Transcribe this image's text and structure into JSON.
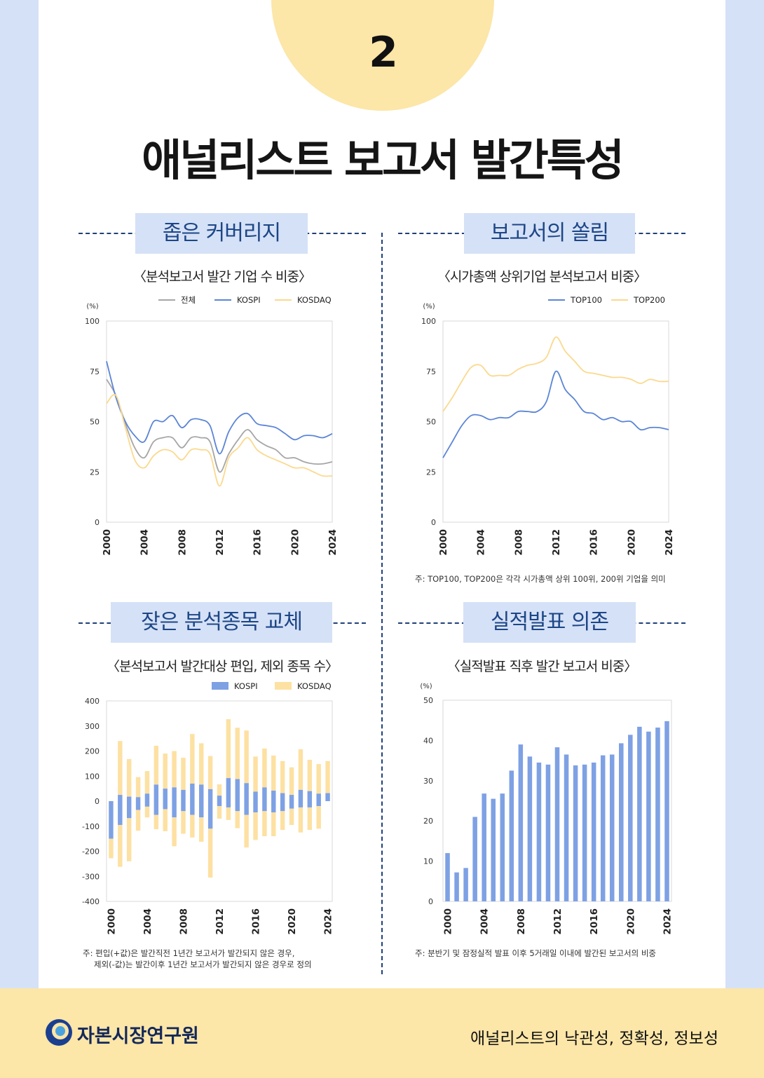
{
  "header": {
    "number": "2",
    "title": "애널리스트 보고서 발간특성"
  },
  "sections": {
    "coverage": {
      "heading": "좁은 커버리지",
      "subtitle": "〈분석보고서 발간 기업 수 비중〉"
    },
    "concentration": {
      "heading": "보고서의 쏠림",
      "subtitle": "〈시가총액 상위기업 분석보고서 비중〉",
      "note": "주: TOP100, TOP200은 각각 시가총액 상위 100위, 200위 기업을 의미"
    },
    "turnover": {
      "heading": "잦은 분석종목 교체",
      "subtitle": "〈분석보고서 발간대상 편입, 제외 종목 수〉",
      "note_line1": "주: 편입(+값)은 발간직전 1년간 보고서가 발간되지 않은 경우,",
      "note_line2": "제외(-값)는 발간이후 1년간 보고서가 발간되지 않은 경우로 정의"
    },
    "earnings": {
      "heading": "실적발표 의존",
      "subtitle": "〈실적발표 직후 발간 보고서 비중〉",
      "note": "주: 분반기 및 잠정실적 발표 이후 5거래일 이내에 발간된 보고서의 비중"
    }
  },
  "footer": {
    "org": "자본시장연구원",
    "book_title": "애널리스트의 낙관성, 정확성, 정보성"
  },
  "colors": {
    "gray": "#a6a6a6",
    "blue": "#5b85d6",
    "yellow": "#fbd98e",
    "bar_blue": "#7ea1e4",
    "bar_yellow": "#fde1a2"
  },
  "chart_data": [
    {
      "id": "coverage",
      "type": "line",
      "unit": "(%)",
      "x": [
        2000,
        2001,
        2002,
        2003,
        2004,
        2005,
        2006,
        2007,
        2008,
        2009,
        2010,
        2011,
        2012,
        2013,
        2014,
        2015,
        2016,
        2017,
        2018,
        2019,
        2020,
        2021,
        2022,
        2023,
        2024
      ],
      "xticks": [
        "2000",
        "2004",
        "2008",
        "2012",
        "2016",
        "2020",
        "2024"
      ],
      "ylim": [
        0,
        100
      ],
      "yticks": [
        0,
        25,
        50,
        75,
        100
      ],
      "series": [
        {
          "name": "전체",
          "color": "#a6a6a6",
          "values": [
            71,
            63,
            49,
            37,
            32,
            40,
            42,
            42,
            37,
            42,
            42,
            40,
            25,
            34,
            41,
            46,
            41,
            38,
            36,
            32,
            32,
            30,
            29,
            29,
            30
          ]
        },
        {
          "name": "KOSPI",
          "color": "#5b85d6",
          "values": [
            80,
            62,
            50,
            43,
            40,
            50,
            50,
            53,
            47,
            51,
            51,
            48,
            34,
            45,
            52,
            54,
            49,
            48,
            47,
            44,
            41,
            43,
            43,
            42,
            44
          ]
        },
        {
          "name": "KOSDAQ",
          "color": "#fbd98e",
          "values": [
            59,
            63,
            47,
            31,
            27,
            33,
            36,
            35,
            31,
            36,
            36,
            34,
            18,
            32,
            37,
            42,
            36,
            33,
            31,
            29,
            27,
            27,
            25,
            23,
            23
          ]
        }
      ]
    },
    {
      "id": "concentration",
      "type": "line",
      "unit": "(%)",
      "x": [
        2000,
        2001,
        2002,
        2003,
        2004,
        2005,
        2006,
        2007,
        2008,
        2009,
        2010,
        2011,
        2012,
        2013,
        2014,
        2015,
        2016,
        2017,
        2018,
        2019,
        2020,
        2021,
        2022,
        2023,
        2024
      ],
      "xticks": [
        "2000",
        "2004",
        "2008",
        "2012",
        "2016",
        "2020",
        "2024"
      ],
      "ylim": [
        0,
        100
      ],
      "yticks": [
        0,
        25,
        50,
        75,
        100
      ],
      "series": [
        {
          "name": "TOP100",
          "color": "#5b85d6",
          "values": [
            32,
            40,
            48,
            53,
            53,
            51,
            52,
            52,
            55,
            55,
            55,
            60,
            75,
            66,
            61,
            55,
            54,
            51,
            52,
            50,
            50,
            46,
            47,
            47,
            46
          ]
        },
        {
          "name": "TOP200",
          "color": "#fbd98e",
          "values": [
            55,
            62,
            70,
            77,
            78,
            73,
            73,
            73,
            76,
            78,
            79,
            82,
            92,
            85,
            80,
            75,
            74,
            73,
            72,
            72,
            71,
            69,
            71,
            70,
            70
          ]
        }
      ]
    },
    {
      "id": "turnover",
      "type": "bar",
      "x": [
        2000,
        2001,
        2002,
        2003,
        2004,
        2005,
        2006,
        2007,
        2008,
        2009,
        2010,
        2011,
        2012,
        2013,
        2014,
        2015,
        2016,
        2017,
        2018,
        2019,
        2020,
        2021,
        2022,
        2023,
        2024
      ],
      "xticks": [
        "2000",
        "2004",
        "2008",
        "2012",
        "2016",
        "2020",
        "2024"
      ],
      "ylim": [
        -400,
        400
      ],
      "yticks": [
        400,
        300,
        200,
        100,
        0,
        -100,
        -200,
        -300,
        -400
      ],
      "series": [
        {
          "name": "KOSPI",
          "color": "#7ea1e4",
          "pos": [
            0,
            25,
            18,
            16,
            30,
            66,
            50,
            55,
            45,
            70,
            66,
            48,
            22,
            92,
            88,
            72,
            38,
            55,
            42,
            32,
            25,
            45,
            40,
            30,
            32
          ],
          "neg": [
            -150,
            -95,
            -68,
            -35,
            -22,
            -55,
            -32,
            -65,
            -40,
            -55,
            -65,
            -110,
            -20,
            -25,
            -40,
            -55,
            -45,
            -40,
            -45,
            -40,
            -30,
            -25,
            -25,
            -20,
            0
          ]
        },
        {
          "name": "KOSDAQ",
          "color": "#fde1a2",
          "pos": [
            0,
            215,
            150,
            80,
            90,
            155,
            140,
            145,
            128,
            198,
            165,
            132,
            45,
            235,
            205,
            210,
            140,
            155,
            140,
            128,
            110,
            162,
            125,
            118,
            128
          ],
          "neg": [
            -228,
            -262,
            -240,
            -118,
            -65,
            -112,
            -120,
            -180,
            -130,
            -145,
            -162,
            -305,
            -70,
            -75,
            -108,
            -185,
            -155,
            -140,
            -140,
            -115,
            -95,
            -125,
            -115,
            -110,
            0
          ]
        }
      ]
    },
    {
      "id": "earnings",
      "type": "bar",
      "unit": "(%)",
      "x": [
        2000,
        2001,
        2002,
        2003,
        2004,
        2005,
        2006,
        2007,
        2008,
        2009,
        2010,
        2011,
        2012,
        2013,
        2014,
        2015,
        2016,
        2017,
        2018,
        2019,
        2020,
        2021,
        2022,
        2023,
        2024
      ],
      "xticks": [
        "2000",
        "2004",
        "2008",
        "2012",
        "2016",
        "2020",
        "2024"
      ],
      "ylim": [
        0,
        50
      ],
      "yticks": [
        0,
        10,
        20,
        30,
        40,
        50
      ],
      "series": [
        {
          "name": "실적발표 직후 발간 보고서 비중",
          "color": "#7ea1e4",
          "values": [
            12,
            7.2,
            8.3,
            21,
            26.8,
            25.5,
            26.8,
            32.5,
            39,
            36,
            34.5,
            34,
            38.3,
            36.5,
            33.8,
            34,
            34.5,
            36.3,
            36.5,
            39.3,
            41.4,
            43.4,
            42.2,
            43.2,
            44.8
          ]
        }
      ]
    }
  ]
}
